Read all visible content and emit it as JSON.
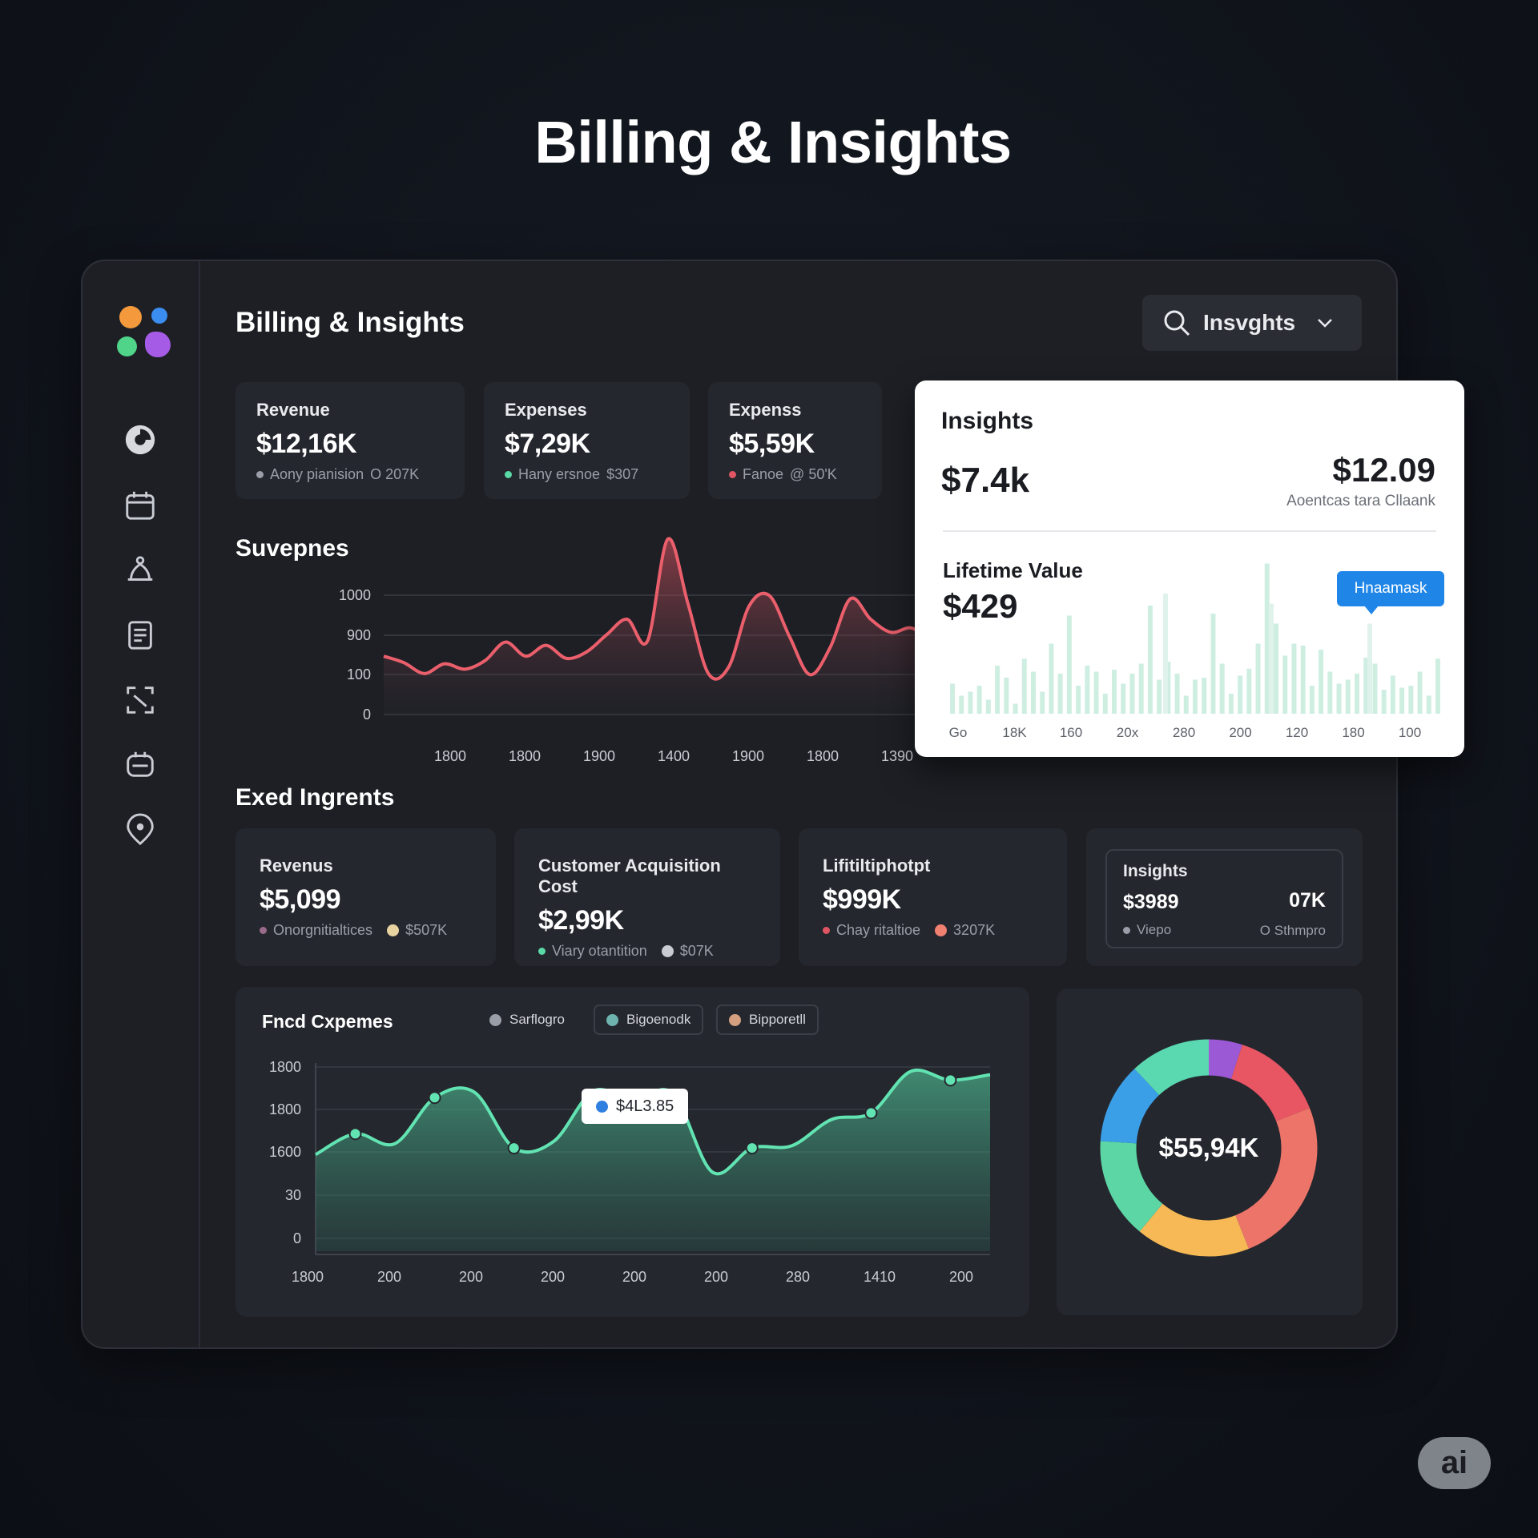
{
  "page_title": "Billing & Insights",
  "header": {
    "title": "Billing & Insights",
    "search_label": "Insvghts"
  },
  "sidebar": {
    "icons": [
      "pie-chart-icon",
      "calendar-icon",
      "bell-icon",
      "document-icon",
      "scan-icon",
      "wallet-icon",
      "location-pin-icon"
    ]
  },
  "top_cards": [
    {
      "label": "Revenue",
      "value": "$12,16K",
      "sub": "Aony pianision",
      "sub_value": "O 207K",
      "dot_color": "#9a9ea8"
    },
    {
      "label": "Expenses",
      "value": "$7,29K",
      "sub": "Hany ersnoe",
      "sub_value": "$307",
      "dot_color": "#5ad8a6"
    },
    {
      "label": "Expenss",
      "value": "$5,59K",
      "sub": "Fanoe",
      "sub_value": "@ 50'K",
      "dot_color": "#e05563"
    }
  ],
  "suvepnes": {
    "title": "Suvepnes",
    "y_ticks": [
      "1000",
      "900",
      "100",
      "0"
    ],
    "x_ticks": [
      "1800",
      "1800",
      "1900",
      "1400",
      "1900",
      "1800",
      "1390"
    ]
  },
  "insights_panel": {
    "title": "Insights",
    "big_value": "$7.4k",
    "right_value": "$12.09",
    "right_sub": "Aoentcas tara Cllaank",
    "lifetime_label": "Lifetime Value",
    "lifetime_value": "$429",
    "tooltip": "Hnaamask",
    "x_ticks": [
      "Go",
      "18K",
      "160",
      "20x",
      "280",
      "200",
      "120",
      "180",
      "100"
    ]
  },
  "section2_title": "Exed Ingrents",
  "mid_cards": [
    {
      "label": "Revenus",
      "value": "$5,099",
      "sub": "Onorgnitialtices",
      "sub2": "$507K",
      "dot1": "#9a6a8a",
      "dot2": "#e8d3a0"
    },
    {
      "label": "Customer Acquisition Cost",
      "value": "$2,99K",
      "sub": "Viary otantition",
      "sub2": "$07K",
      "dot1": "#5ad8a6",
      "dot2": "#c9ccd3"
    },
    {
      "label": "Lifitiltiphotpt",
      "value": "$999K",
      "sub": "Chay ritaltioe",
      "sub2": "3207K",
      "dot1": "#e05563",
      "dot2": "#f08070"
    }
  ],
  "insights_card": {
    "label": "Insights",
    "value": "$3989",
    "right_value": "07K",
    "sub": "Viepo",
    "right_sub": "O Sthmpro"
  },
  "fixed_expenses": {
    "title": "Fncd Cxpemes",
    "legend": [
      {
        "label": "Sarflogro",
        "color": "#9a9ea8"
      },
      {
        "label": "Bigoenodk",
        "color": "#6fb3ae"
      },
      {
        "label": "Bipporetll",
        "color": "#d4a080"
      }
    ],
    "tooltip": "$4L3.85",
    "y_ticks": [
      "1800",
      "1800",
      "1600",
      "30",
      "0"
    ],
    "x_ticks": [
      "1800",
      "200",
      "200",
      "200",
      "200",
      "200",
      "280",
      "1410",
      "200"
    ]
  },
  "donut": {
    "center_label": "$55,94K",
    "segment_colors": [
      "#9b59d6",
      "#e85563",
      "#ec7468",
      "#f7b955",
      "#5bd6a4",
      "#3b9fe8",
      "#5ad8b0"
    ]
  },
  "badge": "ai",
  "chart_data": [
    {
      "type": "area",
      "title": "Suvepnes",
      "series": [
        {
          "values": [
            420,
            360,
            260,
            350,
            300,
            380,
            550,
            420,
            520,
            400,
            460,
            620,
            760,
            560,
            1500,
            900,
            260,
            320,
            880,
            980,
            600,
            250,
            500,
            950,
            760,
            640,
            680,
            560
          ]
        }
      ]
    },
    {
      "type": "bar",
      "title": "Insights",
      "x_ticks": [
        "Go",
        "18K",
        "160",
        "20x",
        "280",
        "200",
        "120",
        "180",
        "100"
      ],
      "values": [
        30,
        18,
        22,
        28,
        14,
        48,
        36,
        10,
        55,
        42,
        22,
        70,
        40,
        98,
        28,
        48,
        42,
        20,
        44,
        30,
        40,
        50,
        108,
        34,
        52,
        40,
        18,
        34,
        36,
        100,
        50,
        20,
        38,
        45,
        70,
        150,
        90,
        58,
        70,
        68,
        28,
        64,
        42,
        30,
        34,
        40,
        56,
        50,
        24,
        38,
        26,
        28,
        42,
        18,
        55
      ],
      "highlight_values": [
        110,
        90,
        120
      ]
    },
    {
      "type": "area",
      "title": "Fncd Cxpemes",
      "series": [
        {
          "values": [
            700,
            890,
            800,
            1220,
            1270,
            760,
            820,
            1280,
            1190,
            1260,
            540,
            760,
            780,
            1020,
            1080,
            1460,
            1380,
            1430
          ]
        }
      ]
    },
    {
      "type": "pie",
      "title": "",
      "values": [
        5,
        14,
        25,
        17,
        15,
        12,
        12
      ]
    }
  ]
}
